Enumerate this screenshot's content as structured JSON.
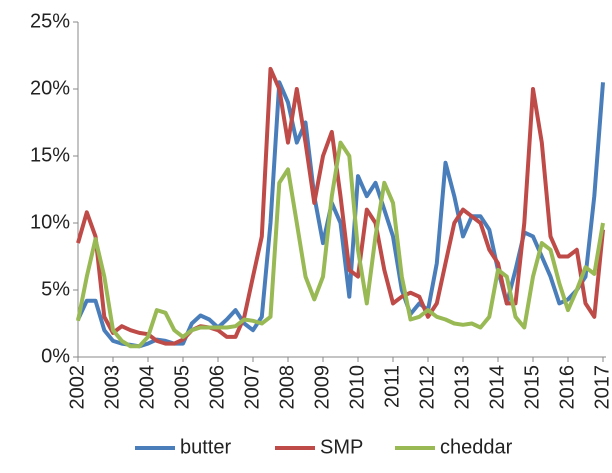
{
  "chart_data": {
    "type": "line",
    "x": [
      2002,
      2002.25,
      2002.5,
      2002.75,
      2003,
      2003.25,
      2003.5,
      2003.75,
      2004,
      2004.25,
      2004.5,
      2004.75,
      2005,
      2005.25,
      2005.5,
      2005.75,
      2006,
      2006.25,
      2006.5,
      2006.75,
      2007,
      2007.25,
      2007.5,
      2007.75,
      2008,
      2008.25,
      2008.5,
      2008.75,
      2009,
      2009.25,
      2009.5,
      2009.75,
      2010,
      2010.25,
      2010.5,
      2010.75,
      2011,
      2011.25,
      2011.5,
      2011.75,
      2012,
      2012.25,
      2012.5,
      2012.75,
      2013,
      2013.25,
      2013.5,
      2013.75,
      2014,
      2014.25,
      2014.5,
      2014.75,
      2015,
      2015.25,
      2015.5,
      2015.75,
      2016,
      2016.25,
      2016.5,
      2016.75,
      2017
    ],
    "series": [
      {
        "name": "butter",
        "color": "#4a7ebb",
        "values": [
          2.8,
          4.2,
          4.2,
          2.0,
          1.2,
          1.0,
          0.9,
          0.8,
          1.0,
          1.3,
          1.2,
          1.0,
          1.0,
          2.5,
          3.1,
          2.8,
          2.2,
          2.8,
          3.5,
          2.5,
          2.0,
          3.0,
          10,
          20.5,
          19,
          16,
          17.5,
          12,
          8.5,
          11.5,
          10,
          4.5,
          13.5,
          12,
          13,
          11,
          9,
          5,
          3.2,
          4,
          3.5,
          7,
          14.5,
          12,
          9,
          10.5,
          10.5,
          9.5,
          6.5,
          4,
          6.5,
          9.3,
          9,
          7.5,
          6,
          4,
          4.3,
          5,
          6,
          12,
          20.5
        ]
      },
      {
        "name": "SMP",
        "color": "#be4b48",
        "values": [
          8.5,
          10.8,
          9,
          3,
          1.8,
          2.3,
          2.0,
          1.8,
          1.7,
          1.2,
          1.0,
          1.0,
          1.3,
          2.0,
          2.3,
          2.2,
          2.0,
          1.5,
          1.5,
          3,
          6,
          9,
          21.5,
          20,
          16,
          20,
          16,
          11.5,
          15,
          16.8,
          12,
          6.5,
          6,
          11,
          10,
          6.5,
          4,
          4.5,
          4.8,
          4.5,
          3,
          4,
          7,
          10,
          11,
          10.5,
          10,
          8,
          7,
          4,
          4,
          10,
          20,
          16,
          9,
          7.5,
          7.5,
          8,
          4,
          3,
          9.5
        ]
      },
      {
        "name": "cheddar",
        "color": "#98b954",
        "values": [
          2.7,
          6,
          8.8,
          6,
          2,
          1.2,
          0.8,
          0.8,
          1.5,
          3.5,
          3.3,
          2,
          1.5,
          2.0,
          2.2,
          2.2,
          2.2,
          2.2,
          2.3,
          2.8,
          2.7,
          2.5,
          3,
          13,
          14,
          10,
          6,
          4.3,
          6,
          12,
          16,
          15,
          8,
          4,
          9,
          13,
          11.5,
          6,
          2.8,
          3,
          3.5,
          3,
          2.8,
          2.5,
          2.4,
          2.5,
          2.2,
          3,
          6.5,
          6,
          3,
          2.2,
          6,
          8.5,
          8,
          5.5,
          3.5,
          5,
          6.7,
          6.2,
          10
        ]
      }
    ],
    "xlim": [
      2002,
      2017
    ],
    "xticks": [
      2002,
      2003,
      2004,
      2005,
      2006,
      2007,
      2008,
      2009,
      2010,
      2011,
      2012,
      2013,
      2014,
      2015,
      2016,
      2017
    ],
    "ylim": [
      0,
      25
    ],
    "yticks": [
      {
        "value": 0,
        "label": "0%"
      },
      {
        "value": 5,
        "label": "5%"
      },
      {
        "value": 10,
        "label": "10%"
      },
      {
        "value": 15,
        "label": "15%"
      },
      {
        "value": 20,
        "label": "20%"
      },
      {
        "value": 25,
        "label": "25%"
      }
    ],
    "legend": "bottom"
  }
}
